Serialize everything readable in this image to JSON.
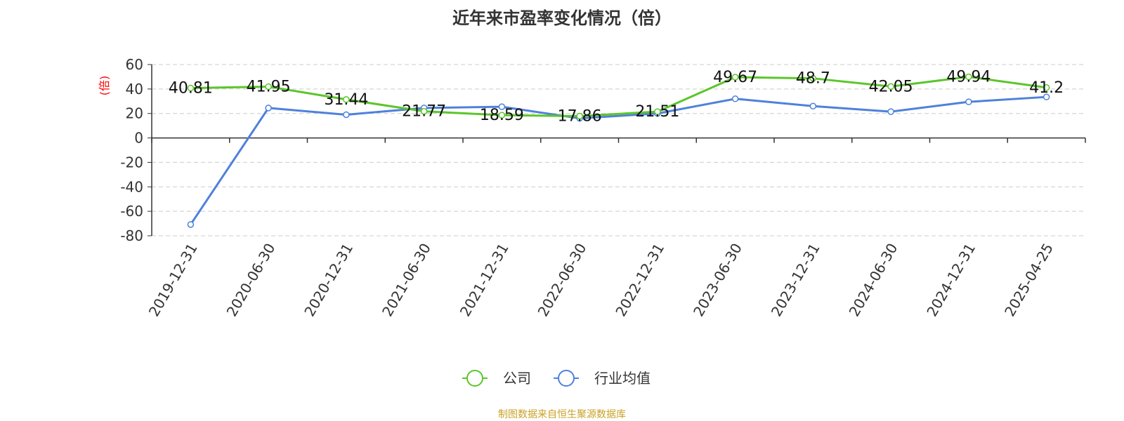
{
  "colors": {
    "company": "#5BC62B",
    "industry": "#4F81DB",
    "title": "#333333",
    "ylabel": "#FF0000",
    "footer": "#C9A227",
    "grid": "#CCCCCC"
  },
  "footer": "制图数据来自恒生聚源数据库",
  "chart_data": {
    "type": "line",
    "title": "近年来市盈率变化情况（倍）",
    "xlabel": "",
    "ylabel": "(倍)",
    "categories": [
      "2019-12-31",
      "2020-06-30",
      "2020-12-31",
      "2021-06-30",
      "2021-12-31",
      "2022-06-30",
      "2022-12-31",
      "2023-06-30",
      "2023-12-31",
      "2024-06-30",
      "2024-12-31",
      "2025-04-25"
    ],
    "ylim": [
      -80,
      60
    ],
    "yticks": [
      60,
      40,
      20,
      0,
      -20,
      -40,
      -60,
      -80
    ],
    "grid": true,
    "legend_position": "bottom-center",
    "series": [
      {
        "name": "公司",
        "color_key": "company",
        "show_labels": true,
        "values": [
          40.81,
          41.95,
          31.44,
          21.77,
          18.59,
          17.86,
          21.51,
          49.67,
          48.7,
          42.05,
          49.94,
          41.2
        ]
      },
      {
        "name": "行业均值",
        "color_key": "industry",
        "show_labels": false,
        "values": [
          -70.8,
          24.5,
          19.0,
          24.5,
          25.5,
          16.0,
          20.0,
          32.0,
          26.0,
          21.5,
          29.5,
          33.5
        ]
      }
    ]
  }
}
